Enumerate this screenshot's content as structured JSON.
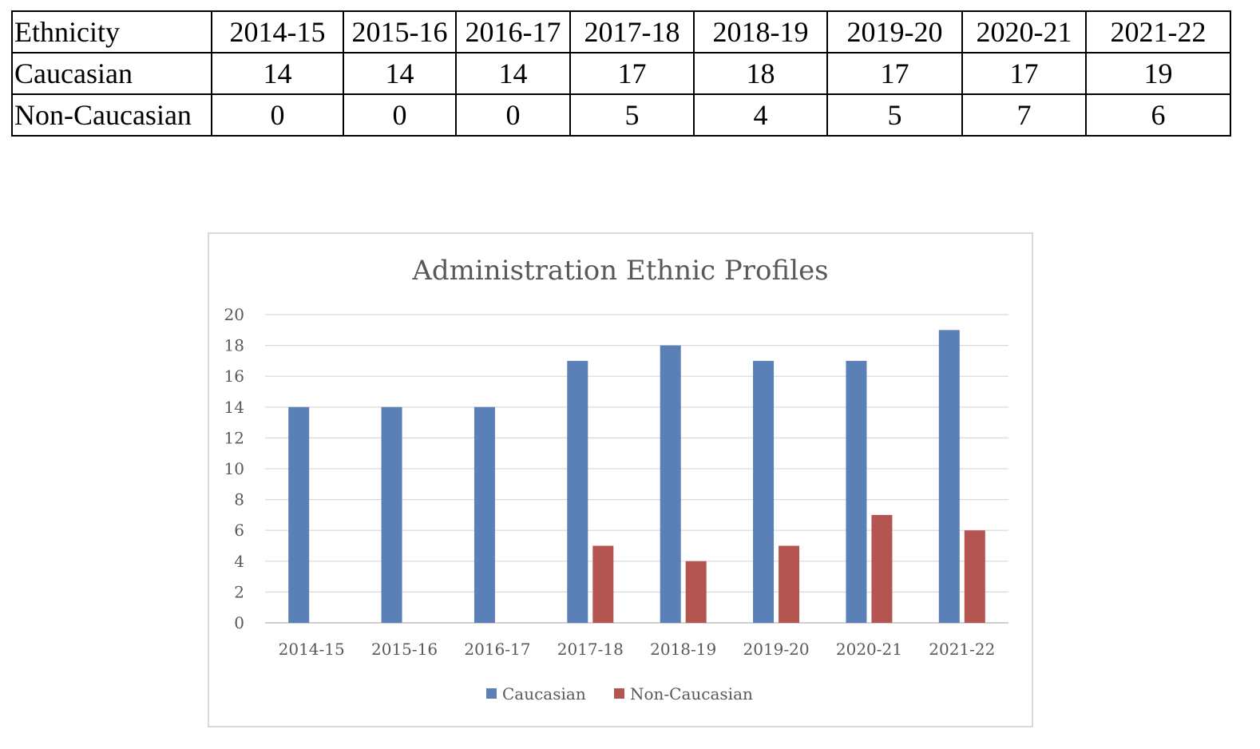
{
  "table": {
    "header_label": "Ethnicity",
    "years": [
      "2014-15",
      "2015-16",
      "2016-17",
      "2017-18",
      "2018-19",
      "2019-20",
      "2020-21",
      "2021-22"
    ],
    "rows": [
      {
        "label": "Caucasian",
        "values": [
          "14",
          "14",
          "14",
          "17",
          "18",
          "17",
          "17",
          "19"
        ]
      },
      {
        "label": "Non-Caucasian",
        "values": [
          "0",
          "0",
          "0",
          "5",
          "4",
          "5",
          "7",
          "6"
        ]
      }
    ]
  },
  "chart_data": {
    "type": "bar",
    "title": "Administration Ethnic Profiles",
    "categories": [
      "2014-15",
      "2015-16",
      "2016-17",
      "2017-18",
      "2018-19",
      "2019-20",
      "2020-21",
      "2021-22"
    ],
    "series": [
      {
        "name": "Caucasian",
        "color": "#5b80b8",
        "values": [
          14,
          14,
          14,
          17,
          18,
          17,
          17,
          19
        ]
      },
      {
        "name": "Non-Caucasian",
        "color": "#b55551",
        "values": [
          0,
          0,
          0,
          5,
          4,
          5,
          7,
          6
        ]
      }
    ],
    "ylim": [
      0,
      20
    ],
    "yticks": [
      "0",
      "2",
      "4",
      "6",
      "8",
      "10",
      "12",
      "14",
      "16",
      "18",
      "20"
    ],
    "grid": true,
    "legend_position": "bottom"
  }
}
